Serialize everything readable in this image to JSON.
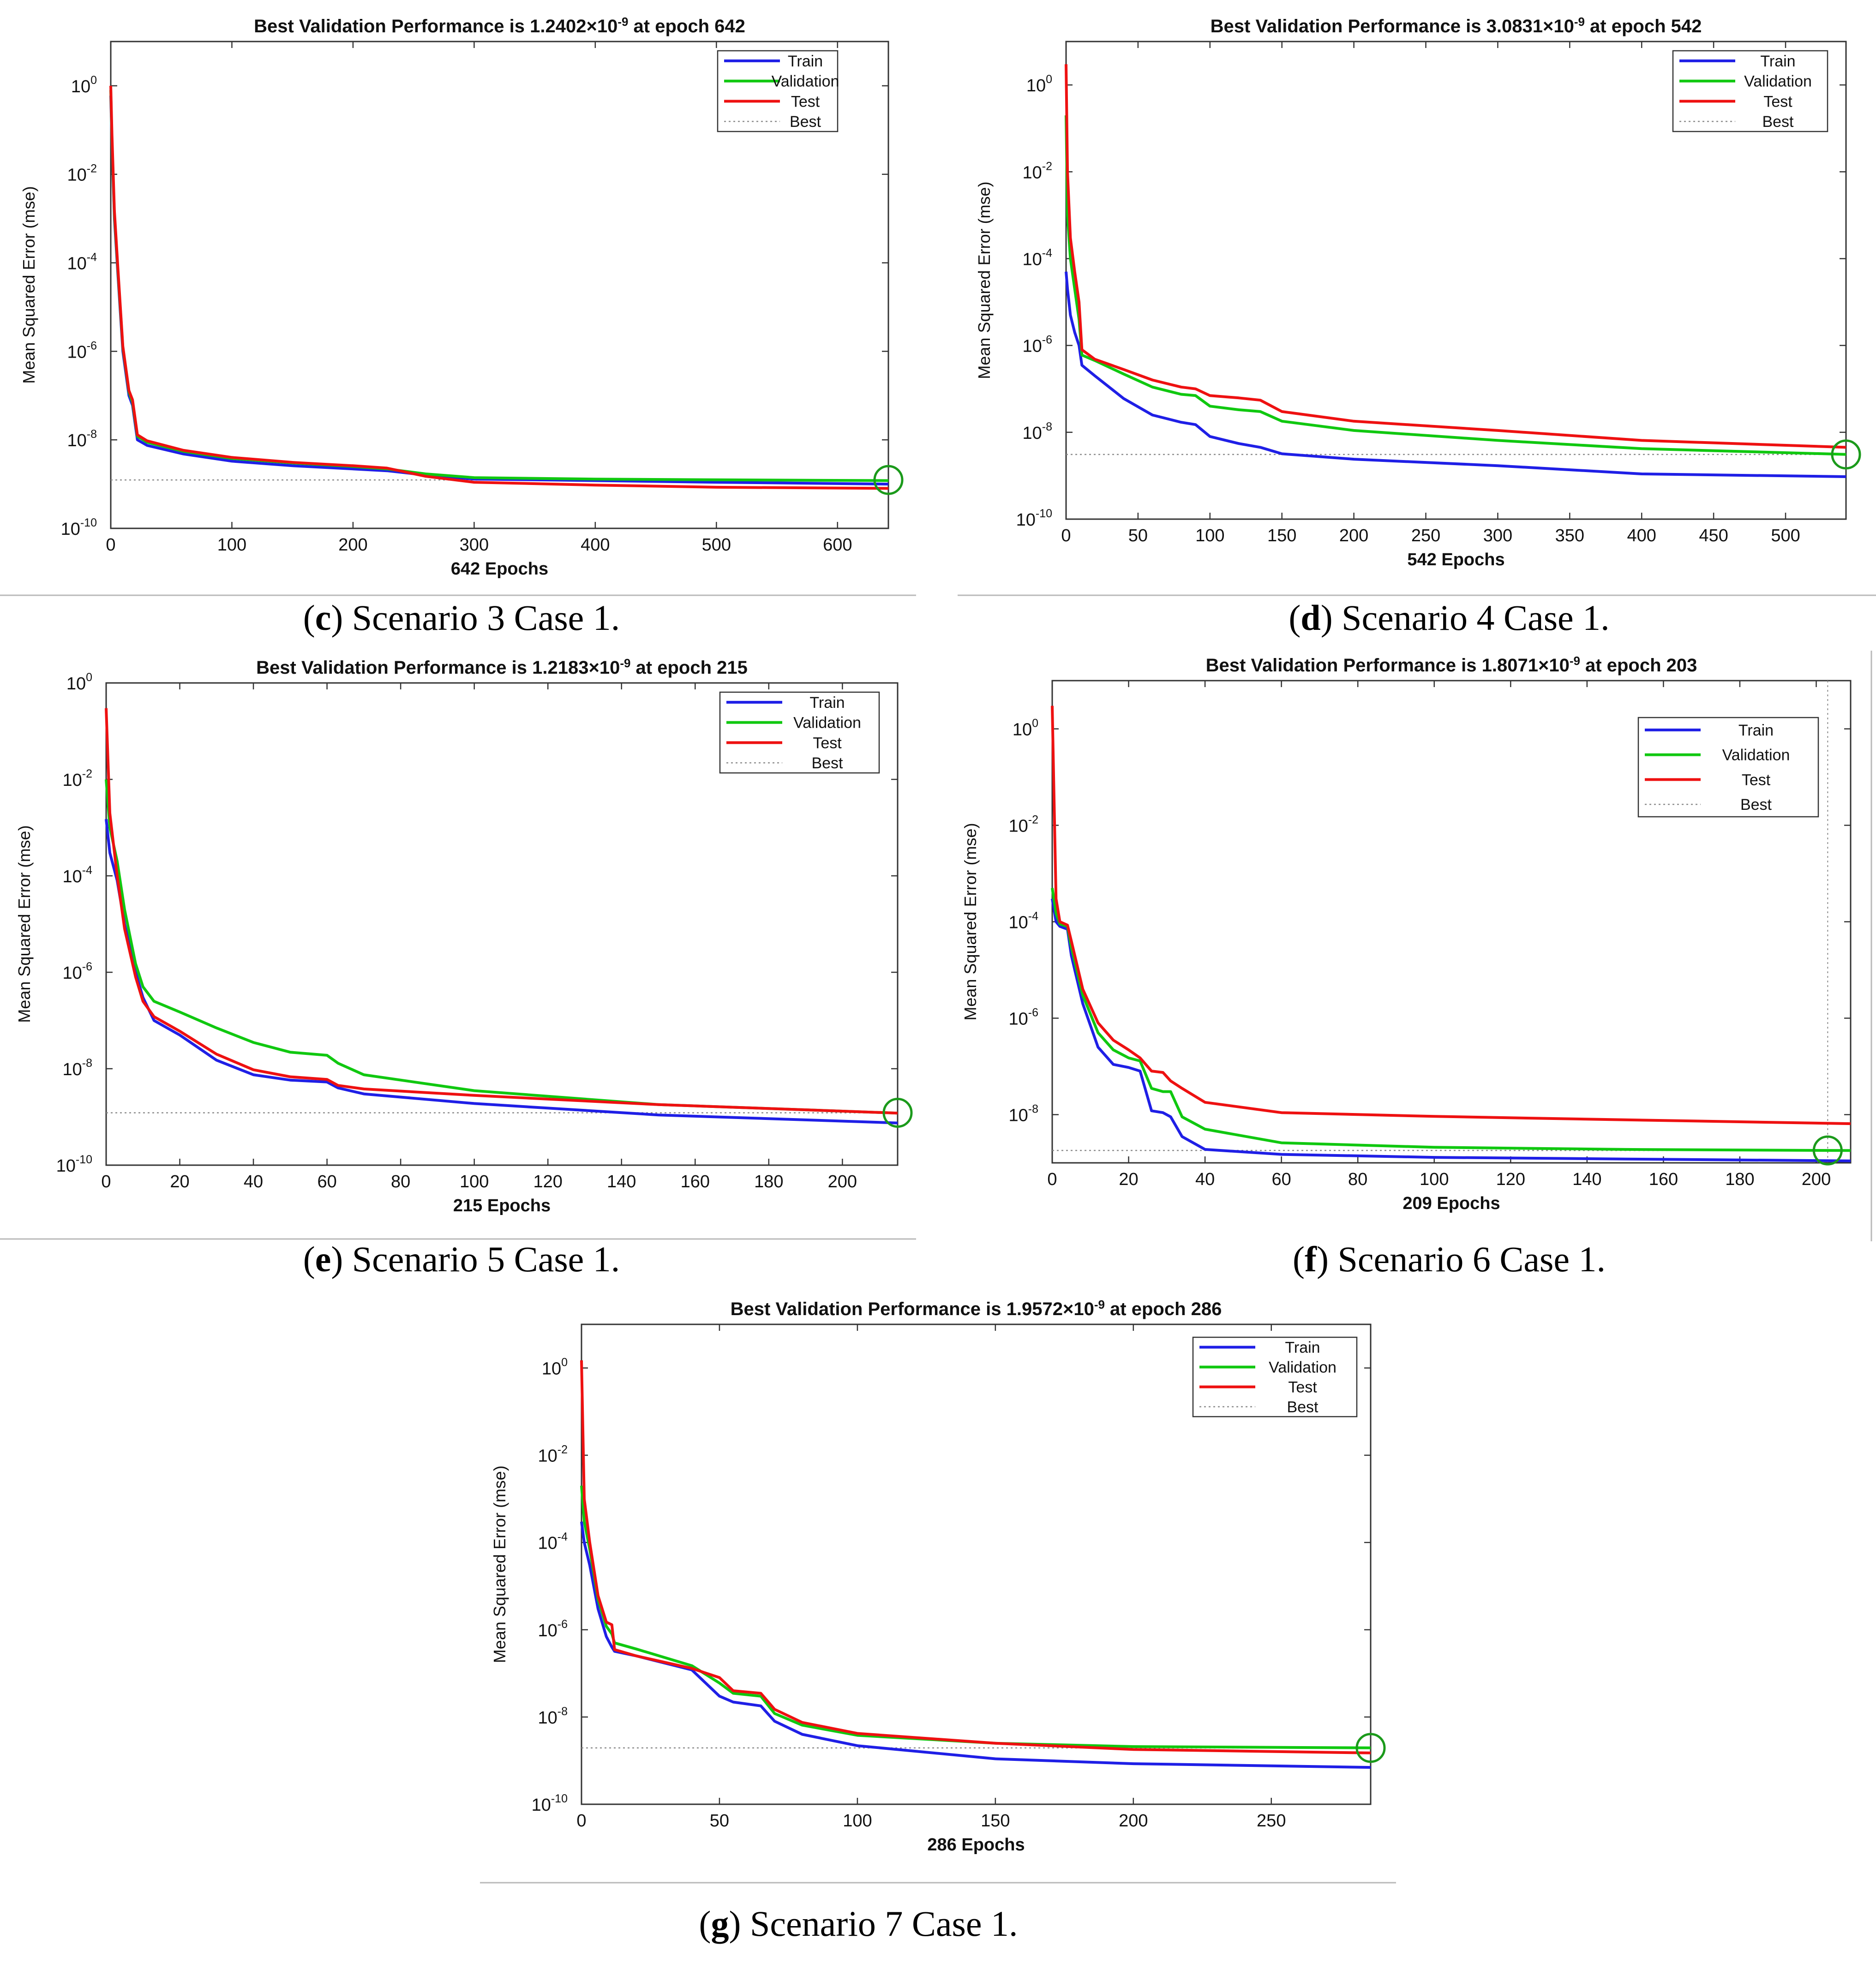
{
  "figure": {
    "series_colors": {
      "train": "#1f1fe6",
      "validation": "#10c810",
      "test": "#ee1111",
      "best": "#8c8c8c",
      "marker": "#1b9a1b"
    }
  },
  "chart_data": [
    {
      "id": "c",
      "type": "line",
      "caption_letter": "c",
      "caption_text": ") Scenario 3 Case 1.",
      "caption_open": "(",
      "title_prefix": "Best Validation Performance is 1.2402×10",
      "title_exponent": "-9",
      "title_suffix": " at epoch 642",
      "xlabel": "642 Epochs",
      "ylabel": "Mean Squared Error  (mse)",
      "xlim": [
        0,
        642
      ],
      "xticks": [
        0,
        100,
        200,
        300,
        400,
        500,
        600
      ],
      "ylim_exp": [
        -10,
        1
      ],
      "yticks_exp": [
        0,
        -2,
        -4,
        -6,
        -8,
        -10
      ],
      "legend": [
        "Train",
        "Validation",
        "Test",
        "Best"
      ],
      "best_epoch": 642,
      "best_value": 1.2402e-09,
      "series": [
        {
          "name": "Train",
          "x": [
            0,
            1,
            3,
            6,
            10,
            15,
            18,
            22,
            30,
            60,
            100,
            150,
            200,
            228,
            260,
            300,
            400,
            500,
            642
          ],
          "y": [
            0.6,
            0.05,
            0.001,
            5e-05,
            1e-06,
            1e-07,
            6e-08,
            1e-08,
            7.5e-09,
            4.8e-09,
            3.3e-09,
            2.6e-09,
            2.2e-09,
            2e-09,
            1.6e-09,
            1.3e-09,
            1.2e-09,
            1.1e-09,
            1e-09
          ]
        },
        {
          "name": "Validation",
          "x": [
            0,
            1,
            3,
            6,
            10,
            15,
            18,
            22,
            30,
            60,
            100,
            150,
            200,
            228,
            260,
            300,
            400,
            500,
            642
          ],
          "y": [
            0.8,
            0.06,
            0.0012,
            6e-05,
            1.2e-06,
            1.2e-07,
            7e-08,
            1.2e-08,
            8.8e-09,
            5.5e-09,
            3.8e-09,
            3e-09,
            2.5e-09,
            2.2e-09,
            1.7e-09,
            1.4e-09,
            1.3e-09,
            1.25e-09,
            1.2e-09
          ]
        },
        {
          "name": "Test",
          "x": [
            0,
            1,
            3,
            6,
            10,
            15,
            18,
            22,
            30,
            60,
            100,
            150,
            200,
            228,
            260,
            300,
            400,
            500,
            642
          ],
          "y": [
            1,
            0.08,
            0.0015,
            7e-05,
            1.3e-06,
            1.3e-07,
            8e-08,
            1.3e-08,
            9.5e-09,
            5.8e-09,
            4e-09,
            3.1e-09,
            2.6e-09,
            2.3e-09,
            1.5e-09,
            1.1e-09,
            9.5e-10,
            8.5e-10,
            8e-10
          ]
        }
      ]
    },
    {
      "id": "d",
      "type": "line",
      "caption_letter": "d",
      "caption_text": ") Scenario 4 Case 1.",
      "caption_open": "(",
      "title_prefix": "Best Validation Performance is 3.0831×10",
      "title_exponent": "-9",
      "title_suffix": " at epoch 542",
      "xlabel": "542 Epochs",
      "ylabel": "Mean Squared Error  (mse)",
      "xlim": [
        0,
        542
      ],
      "xticks": [
        0,
        50,
        100,
        150,
        200,
        250,
        300,
        350,
        400,
        450,
        500
      ],
      "ylim_exp": [
        -10,
        1
      ],
      "yticks_exp": [
        0,
        -2,
        -4,
        -6,
        -8,
        -10
      ],
      "legend": [
        "Train",
        "Validation",
        "Test",
        "Best"
      ],
      "best_epoch": 542,
      "best_value": 3.0831e-09,
      "series": [
        {
          "name": "Train",
          "x": [
            0,
            1,
            3,
            6,
            9,
            11,
            20,
            40,
            60,
            80,
            90,
            100,
            120,
            135,
            150,
            200,
            300,
            400,
            542
          ],
          "y": [
            5e-05,
            2e-05,
            5e-06,
            2e-06,
            1e-06,
            3.5e-07,
            2e-07,
            6e-08,
            2.5e-08,
            1.7e-08,
            1.5e-08,
            8e-09,
            5.5e-09,
            4.5e-09,
            3.2e-09,
            2.4e-09,
            1.7e-09,
            1.1e-09,
            9.5e-10
          ]
        },
        {
          "name": "Validation",
          "x": [
            0,
            1,
            3,
            6,
            9,
            11,
            20,
            40,
            60,
            80,
            90,
            100,
            120,
            135,
            150,
            200,
            300,
            400,
            542
          ],
          "y": [
            0.2,
            0.001,
            0.0001,
            2e-05,
            4e-06,
            6e-07,
            4.5e-07,
            2.2e-07,
            1.1e-07,
            7.5e-08,
            7e-08,
            4e-08,
            3.3e-08,
            3e-08,
            1.8e-08,
            1.1e-08,
            6.5e-09,
            4.2e-09,
            3.1e-09
          ]
        },
        {
          "name": "Test",
          "x": [
            0,
            1,
            3,
            6,
            9,
            11,
            20,
            40,
            60,
            80,
            90,
            100,
            120,
            135,
            150,
            200,
            300,
            400,
            542
          ],
          "y": [
            3,
            0.01,
            0.0003,
            5e-05,
            1e-05,
            8e-07,
            4.8e-07,
            2.8e-07,
            1.6e-07,
            1.1e-07,
            1e-07,
            7e-08,
            6.2e-08,
            5.5e-08,
            3e-08,
            1.8e-08,
            1.1e-08,
            6.5e-09,
            4.5e-09
          ]
        }
      ]
    },
    {
      "id": "e",
      "type": "line",
      "caption_letter": "e",
      "caption_text": ") Scenario 5 Case 1.",
      "caption_open": "(",
      "title_prefix": "Best Validation Performance is 1.2183×10",
      "title_exponent": "-9",
      "title_suffix": " at epoch 215",
      "xlabel": "215 Epochs",
      "ylabel": "Mean Squared Error  (mse)",
      "xlim": [
        0,
        215
      ],
      "xticks": [
        0,
        20,
        40,
        60,
        80,
        100,
        120,
        140,
        160,
        180,
        200
      ],
      "ylim_exp": [
        -10,
        0
      ],
      "yticks_exp": [
        0,
        -2,
        -4,
        -6,
        -8,
        -10
      ],
      "legend": [
        "Train",
        "Validation",
        "Test",
        "Best"
      ],
      "best_epoch": 215,
      "best_value": 1.2183e-09,
      "series": [
        {
          "name": "Train",
          "x": [
            0,
            1,
            3,
            5,
            8,
            10,
            13,
            20,
            30,
            40,
            50,
            60,
            63,
            70,
            100,
            150,
            215
          ],
          "y": [
            0.0015,
            0.0003,
            8e-05,
            1e-05,
            1e-06,
            3e-07,
            1e-07,
            5e-08,
            1.5e-08,
            7.5e-09,
            5.8e-09,
            5.3e-09,
            4e-09,
            3e-09,
            1.9e-09,
            1.1e-09,
            7.5e-10
          ]
        },
        {
          "name": "Validation",
          "x": [
            0,
            1,
            3,
            5,
            8,
            10,
            13,
            20,
            30,
            40,
            50,
            60,
            63,
            70,
            100,
            150,
            215
          ],
          "y": [
            0.01,
            0.001,
            0.0002,
            2e-05,
            1.5e-06,
            5e-07,
            2.5e-07,
            1.5e-07,
            7e-08,
            3.5e-08,
            2.2e-08,
            1.9e-08,
            1.3e-08,
            7.5e-09,
            3.5e-09,
            1.8e-09,
            1.2e-09
          ]
        },
        {
          "name": "Test",
          "x": [
            0,
            1,
            3,
            5,
            8,
            10,
            13,
            20,
            30,
            40,
            50,
            60,
            63,
            70,
            100,
            150,
            215
          ],
          "y": [
            0.3,
            0.002,
            0.0001,
            8e-06,
            8e-07,
            2.5e-07,
            1.2e-07,
            6e-08,
            2e-08,
            9.5e-09,
            6.8e-09,
            6e-09,
            4.5e-09,
            3.8e-09,
            2.8e-09,
            1.8e-09,
            1.2e-09
          ]
        }
      ]
    },
    {
      "id": "f",
      "type": "line",
      "caption_letter": "f",
      "caption_text": ") Scenario 6 Case 1.",
      "caption_open": "(",
      "title_prefix": "Best Validation Performance is 1.8071×10",
      "title_exponent": "-9",
      "title_suffix": " at epoch 203",
      "xlabel": "209 Epochs",
      "ylabel": "Mean Squared Error  (mse)",
      "xlim": [
        0,
        209
      ],
      "xticks": [
        0,
        20,
        40,
        60,
        80,
        100,
        120,
        140,
        160,
        180,
        200
      ],
      "ylim_exp": [
        -9,
        1
      ],
      "yticks_exp": [
        0,
        -2,
        -4,
        -6,
        -8
      ],
      "legend": [
        "Train",
        "Validation",
        "Test",
        "Best"
      ],
      "best_epoch": 203,
      "best_value": 1.8071e-09,
      "series": [
        {
          "name": "Train",
          "x": [
            0,
            1,
            2,
            4,
            5,
            8,
            12,
            16,
            20,
            23,
            26,
            29,
            31,
            34,
            40,
            60,
            100,
            150,
            209
          ],
          "y": [
            0.0003,
            0.0001,
            8e-05,
            7e-05,
            2e-05,
            2e-06,
            2.5e-07,
            1.1e-07,
            9.5e-08,
            8e-08,
            1.2e-08,
            1.1e-08,
            9e-09,
            3.5e-09,
            1.9e-09,
            1.5e-09,
            1.3e-09,
            1.2e-09,
            1.1e-09
          ]
        },
        {
          "name": "Validation",
          "x": [
            0,
            1,
            2,
            4,
            5,
            8,
            12,
            16,
            20,
            23,
            26,
            29,
            31,
            34,
            40,
            60,
            100,
            150,
            209
          ],
          "y": [
            0.0005,
            0.00015,
            9e-05,
            8e-05,
            3e-05,
            3e-06,
            5e-07,
            2.2e-07,
            1.5e-07,
            1.3e-07,
            3.5e-08,
            3e-08,
            3e-08,
            9e-09,
            5e-09,
            2.6e-09,
            2.1e-09,
            1.9e-09,
            1.8e-09
          ]
        },
        {
          "name": "Test",
          "x": [
            0,
            1,
            2,
            4,
            5,
            8,
            12,
            16,
            20,
            23,
            26,
            29,
            31,
            34,
            40,
            60,
            100,
            150,
            209
          ],
          "y": [
            3,
            0.0003,
            0.0001,
            8.5e-05,
            4e-05,
            4e-06,
            8e-07,
            3.5e-07,
            2.2e-07,
            1.5e-07,
            8e-08,
            7.5e-08,
            5e-08,
            3.5e-08,
            1.8e-08,
            1.1e-08,
            9.2e-09,
            7.8e-09,
            6.5e-09
          ]
        }
      ]
    },
    {
      "id": "g",
      "type": "line",
      "caption_letter": "g",
      "caption_text": ") Scenario 7 Case 1.",
      "caption_open": "(",
      "title_prefix": "Best Validation Performance is 1.9572×10",
      "title_exponent": "-9",
      "title_suffix": " at epoch 286",
      "xlabel": "286 Epochs",
      "ylabel": "Mean Squared Error  (mse)",
      "xlim": [
        0,
        286
      ],
      "xticks": [
        0,
        50,
        100,
        150,
        200,
        250
      ],
      "ylim_exp": [
        -10,
        1
      ],
      "yticks_exp": [
        0,
        -2,
        -4,
        -6,
        -8,
        -10
      ],
      "legend": [
        "Train",
        "Validation",
        "Test",
        "Best"
      ],
      "best_epoch": 286,
      "best_value": 1.9572e-09,
      "series": [
        {
          "name": "Train",
          "x": [
            0,
            1,
            3,
            6,
            9,
            11,
            12,
            20,
            40,
            50,
            55,
            65,
            70,
            80,
            100,
            150,
            200,
            286
          ],
          "y": [
            0.0003,
            0.0001,
            3e-05,
            3e-06,
            7e-07,
            4e-07,
            3.2e-07,
            2.5e-07,
            1.2e-07,
            3e-08,
            2.2e-08,
            1.8e-08,
            8e-09,
            4e-09,
            2.2e-09,
            1.1e-09,
            8.5e-10,
            7e-10
          ]
        },
        {
          "name": "Validation",
          "x": [
            0,
            1,
            3,
            6,
            9,
            11,
            12,
            20,
            40,
            50,
            55,
            65,
            70,
            80,
            100,
            150,
            200,
            286
          ],
          "y": [
            0.002,
            0.0003,
            7e-05,
            5e-06,
            1.2e-06,
            8e-07,
            5e-07,
            3.6e-07,
            1.5e-07,
            6e-08,
            3.5e-08,
            3e-08,
            1.2e-08,
            6.5e-09,
            3.8e-09,
            2.5e-09,
            2.1e-09,
            1.96e-09
          ]
        },
        {
          "name": "Test",
          "x": [
            0,
            1,
            3,
            6,
            9,
            11,
            12,
            20,
            40,
            50,
            55,
            65,
            70,
            80,
            100,
            150,
            200,
            286
          ],
          "y": [
            1.5,
            0.001,
            0.0001,
            6e-06,
            1.5e-06,
            1.3e-06,
            3.5e-07,
            2.5e-07,
            1.3e-07,
            8e-08,
            4e-08,
            3.5e-08,
            1.5e-08,
            7.5e-09,
            4.2e-09,
            2.5e-09,
            1.8e-09,
            1.5e-09
          ]
        }
      ]
    }
  ]
}
